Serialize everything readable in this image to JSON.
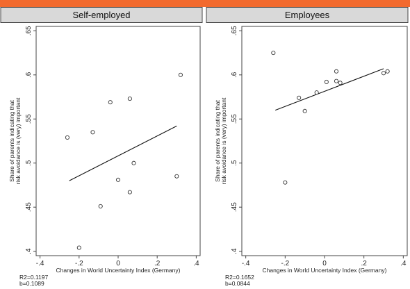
{
  "colors": {
    "top_bar": "#f26a2e",
    "title_band": "#d9d9d9",
    "points": "#333333",
    "fit_line": "#111111"
  },
  "chart_data": [
    {
      "type": "scatter",
      "title": "Self-employed",
      "xlabel": "Changes in World Uncertainty Index (Germany)",
      "ylabel": "Share of parents indicating that risk avoidance is (very) important",
      "ylabel_lines": [
        "Share of parents indicating that",
        "risk avoidance is (very) important"
      ],
      "xlim": [
        -0.42,
        0.42
      ],
      "ylim": [
        0.395,
        0.655
      ],
      "x_ticks": [
        -0.4,
        -0.2,
        0,
        0.2,
        0.4
      ],
      "x_tick_labels": [
        "-.4",
        "-.2",
        "0",
        ".2",
        ".4"
      ],
      "y_ticks": [
        0.4,
        0.45,
        0.5,
        0.55,
        0.6,
        0.65
      ],
      "y_tick_labels": [
        ".4",
        ".45",
        ".5",
        ".55",
        ".6",
        ".65"
      ],
      "grid": false,
      "points": [
        {
          "x": -0.26,
          "y": 0.529
        },
        {
          "x": -0.13,
          "y": 0.535
        },
        {
          "x": -0.04,
          "y": 0.569
        },
        {
          "x": 0.06,
          "y": 0.573
        },
        {
          "x": 0.32,
          "y": 0.6
        },
        {
          "x": 0.08,
          "y": 0.5
        },
        {
          "x": 0.0,
          "y": 0.481
        },
        {
          "x": 0.06,
          "y": 0.467
        },
        {
          "x": 0.3,
          "y": 0.485
        },
        {
          "x": -0.09,
          "y": 0.451
        },
        {
          "x": -0.2,
          "y": 0.404
        }
      ],
      "fit_line": {
        "x": [
          -0.25,
          0.3
        ],
        "y": [
          0.48,
          0.542
        ]
      },
      "notes": [
        "R2=0.1197",
        "b=0.1089"
      ]
    },
    {
      "type": "scatter",
      "title": "Employees",
      "xlabel": "Changes in World Uncertainty Index (Germany)",
      "ylabel": "Share of parents indicating that risk avoidance is (very) important",
      "ylabel_lines": [
        "Share of parents indicating that",
        "risk avoidance is (very) important"
      ],
      "xlim": [
        -0.42,
        0.42
      ],
      "ylim": [
        0.395,
        0.655
      ],
      "x_ticks": [
        -0.4,
        -0.2,
        0,
        0.2,
        0.4
      ],
      "x_tick_labels": [
        "-.4",
        "-.2",
        "0",
        ".2",
        ".4"
      ],
      "y_ticks": [
        0.4,
        0.45,
        0.5,
        0.55,
        0.6,
        0.65
      ],
      "y_tick_labels": [
        ".4",
        ".45",
        ".5",
        ".55",
        ".6",
        ".65"
      ],
      "grid": false,
      "points": [
        {
          "x": -0.26,
          "y": 0.625
        },
        {
          "x": -0.13,
          "y": 0.574
        },
        {
          "x": -0.1,
          "y": 0.559
        },
        {
          "x": -0.04,
          "y": 0.58
        },
        {
          "x": 0.01,
          "y": 0.592
        },
        {
          "x": 0.06,
          "y": 0.593
        },
        {
          "x": 0.06,
          "y": 0.604
        },
        {
          "x": 0.08,
          "y": 0.591
        },
        {
          "x": 0.3,
          "y": 0.602
        },
        {
          "x": 0.32,
          "y": 0.604
        },
        {
          "x": -0.2,
          "y": 0.478
        }
      ],
      "fit_line": {
        "x": [
          -0.25,
          0.3
        ],
        "y": [
          0.56,
          0.607
        ]
      },
      "notes": [
        "R2=0.1652",
        "b=0.0844"
      ]
    }
  ]
}
